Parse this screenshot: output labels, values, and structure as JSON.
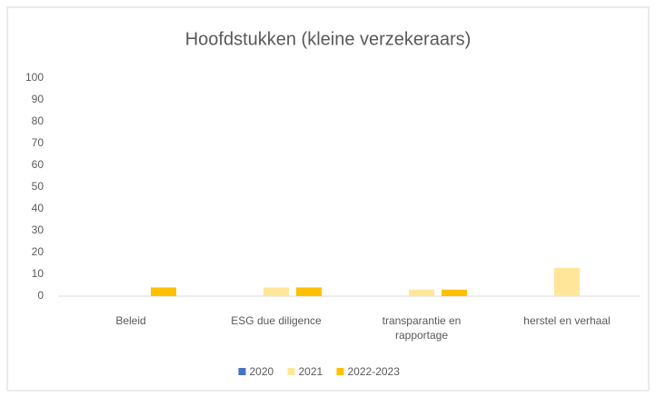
{
  "chart_data": {
    "type": "bar",
    "title": "Hoofdstukken (kleine verzekeraars)",
    "categories": [
      "Beleid",
      "ESG due diligence",
      "transparantie en rapportage",
      "herstel en verhaal"
    ],
    "series": [
      {
        "name": "2020",
        "color": "#4472c4",
        "values": [
          0,
          0,
          0,
          0
        ]
      },
      {
        "name": "2021",
        "color": "#ffe699",
        "values": [
          0,
          4,
          3,
          13
        ]
      },
      {
        "name": "2022-2023",
        "color": "#ffc000",
        "values": [
          4,
          4,
          3,
          0
        ]
      }
    ],
    "ylim": [
      0,
      100
    ],
    "yticks": [
      0,
      10,
      20,
      30,
      40,
      50,
      60,
      70,
      80,
      90,
      100
    ],
    "grid": false,
    "legend": "bottom"
  }
}
